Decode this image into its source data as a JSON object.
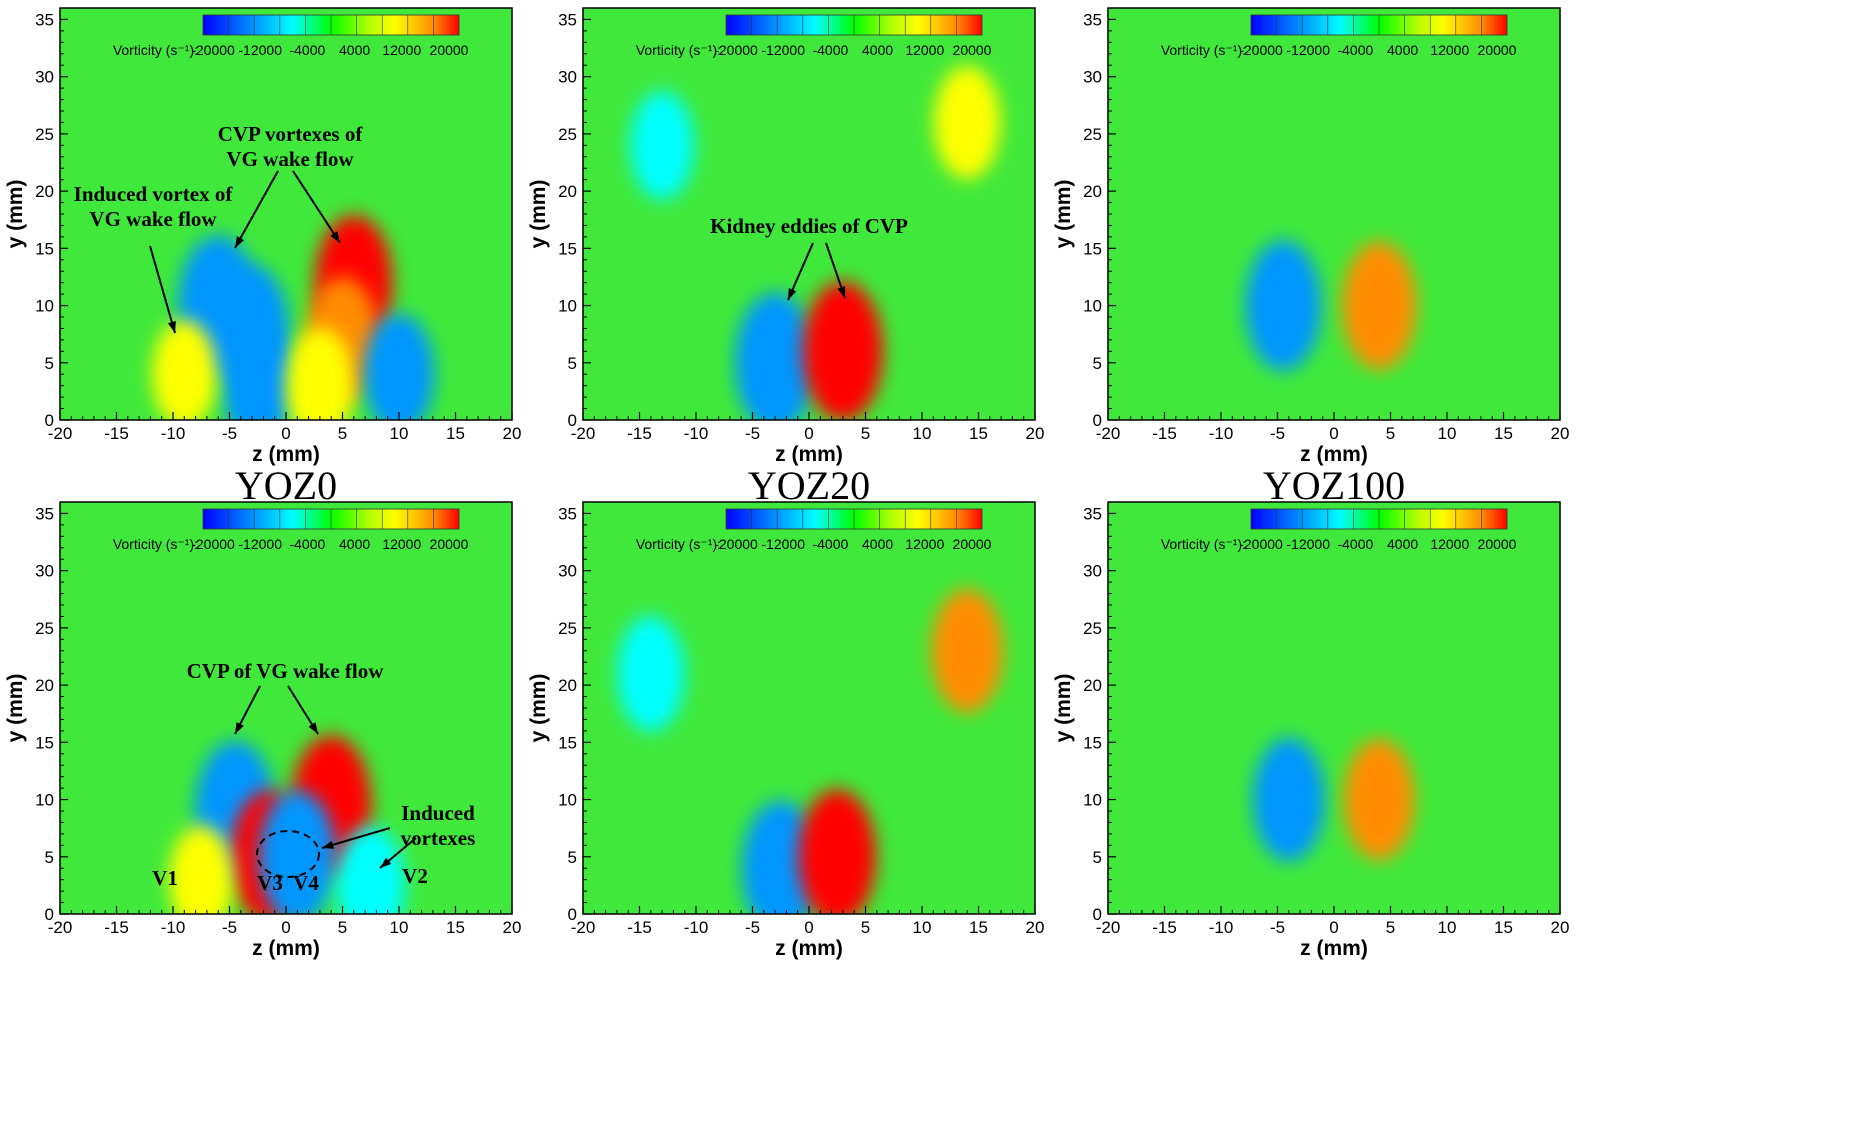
{
  "chart_data": [
    {
      "type": "heatmap",
      "panel": "top-left",
      "xlabel": "z (mm)",
      "ylabel": "y (mm)",
      "xlim": [
        -20,
        20
      ],
      "ylim": [
        0,
        36
      ],
      "xticks": [
        -20,
        -15,
        -10,
        -5,
        0,
        5,
        10,
        15,
        20
      ],
      "yticks": [
        0,
        5,
        10,
        15,
        20,
        25,
        30,
        35
      ],
      "colorbar": {
        "label": "Vorticity (s⁻¹):",
        "ticks": [
          "-20000",
          "-12000",
          "-4000",
          "4000",
          "12000",
          "20000"
        ],
        "range": [
          -20000,
          20000
        ]
      },
      "plane_label": "YOZ0",
      "features": [
        {
          "z": -6,
          "y": 10,
          "vorticity": -20000
        },
        {
          "z": -3,
          "y": 8,
          "vorticity": -14000
        },
        {
          "z": -2.5,
          "y": 3,
          "vorticity": -12000
        },
        {
          "z": -9,
          "y": 4,
          "vorticity": 7000
        },
        {
          "z": 6,
          "y": 12,
          "vorticity": 18000
        },
        {
          "z": 5,
          "y": 7,
          "vorticity": 14000
        },
        {
          "z": 3,
          "y": 3,
          "vorticity": 10000
        },
        {
          "z": 10,
          "y": 4,
          "vorticity": -12000
        }
      ],
      "annotations": [
        {
          "lines": [
            "CVP vortexes of",
            "VG wake flow"
          ]
        },
        {
          "lines": [
            "Induced vortex of",
            "VG wake flow"
          ]
        }
      ]
    },
    {
      "type": "heatmap",
      "panel": "top-middle",
      "xlabel": "z (mm)",
      "ylabel": "y (mm)",
      "xlim": [
        -20,
        20
      ],
      "ylim": [
        0,
        36
      ],
      "xticks": [
        -20,
        -15,
        -10,
        -5,
        0,
        5,
        10,
        15,
        20
      ],
      "yticks": [
        0,
        5,
        10,
        15,
        20,
        25,
        30,
        35
      ],
      "colorbar": {
        "label": "Vorticity (s⁻¹):",
        "ticks": [
          "-20000",
          "-12000",
          "-4000",
          "4000",
          "12000",
          "20000"
        ],
        "range": [
          -20000,
          20000
        ]
      },
      "plane_label": "YOZ20",
      "features": [
        {
          "z": -3,
          "y": 5,
          "vorticity": -20000
        },
        {
          "z": 3,
          "y": 6,
          "vorticity": 20000
        },
        {
          "z": -13,
          "y": 24,
          "vorticity": -7000
        },
        {
          "z": 14,
          "y": 26,
          "vorticity": 9000
        }
      ],
      "annotations": [
        {
          "lines": [
            "Kidney eddies of CVP"
          ]
        }
      ]
    },
    {
      "type": "heatmap",
      "panel": "top-right",
      "xlabel": "z (mm)",
      "ylabel": "y (mm)",
      "xlim": [
        -20,
        20
      ],
      "ylim": [
        0,
        36
      ],
      "xticks": [
        -20,
        -15,
        -10,
        -5,
        0,
        5,
        10,
        15,
        20
      ],
      "yticks": [
        0,
        5,
        10,
        15,
        20,
        25,
        30,
        35
      ],
      "colorbar": {
        "label": "Vorticity (s⁻¹):",
        "ticks": [
          "-20000",
          "-12000",
          "-4000",
          "4000",
          "12000",
          "20000"
        ],
        "range": [
          -20000,
          20000
        ]
      },
      "plane_label": "YOZ100",
      "features": [
        {
          "z": -4.5,
          "y": 10,
          "vorticity": -16000
        },
        {
          "z": 4,
          "y": 10,
          "vorticity": 15000
        }
      ],
      "annotations": []
    },
    {
      "type": "heatmap",
      "panel": "bottom-left",
      "xlabel": "z (mm)",
      "ylabel": "y (mm)",
      "xlim": [
        -20,
        20
      ],
      "ylim": [
        0,
        36
      ],
      "xticks": [
        -20,
        -15,
        -10,
        -5,
        0,
        5,
        10,
        15,
        20
      ],
      "yticks": [
        0,
        5,
        10,
        15,
        20,
        25,
        30,
        35
      ],
      "colorbar": {
        "label": "Vorticity (s⁻¹):",
        "ticks": [
          "-20000",
          "-12000",
          "-4000",
          "4000",
          "12000",
          "20000"
        ],
        "range": [
          -20000,
          20000
        ]
      },
      "plane_label": "",
      "features": [
        {
          "z": -4.5,
          "y": 9,
          "vorticity": -20000
        },
        {
          "z": 4,
          "y": 9.5,
          "vorticity": 20000
        },
        {
          "z": -1.5,
          "y": 5,
          "vorticity": 17000
        },
        {
          "z": 1,
          "y": 5,
          "vorticity": -17000
        },
        {
          "z": -7.5,
          "y": 3,
          "vorticity": 7000
        },
        {
          "z": 7.5,
          "y": 2.5,
          "vorticity": -11000
        }
      ],
      "annotations": [
        {
          "lines": [
            "CVP of VG wake flow"
          ]
        },
        {
          "lines": [
            "Induced",
            "vortexes"
          ]
        },
        {
          "lines": [
            "V1"
          ]
        },
        {
          "lines": [
            "V2"
          ]
        },
        {
          "lines": [
            "V3"
          ]
        },
        {
          "lines": [
            "V4"
          ]
        }
      ]
    },
    {
      "type": "heatmap",
      "panel": "bottom-middle",
      "xlabel": "z (mm)",
      "ylabel": "y (mm)",
      "xlim": [
        -20,
        20
      ],
      "ylim": [
        0,
        36
      ],
      "xticks": [
        -20,
        -15,
        -10,
        -5,
        0,
        5,
        10,
        15,
        20
      ],
      "yticks": [
        0,
        5,
        10,
        15,
        20,
        25,
        30,
        35
      ],
      "colorbar": {
        "label": "Vorticity (s⁻¹):",
        "ticks": [
          "-20000",
          "-12000",
          "-4000",
          "4000",
          "12000",
          "20000"
        ],
        "range": [
          -20000,
          20000
        ]
      },
      "plane_label": "",
      "features": [
        {
          "z": -2.5,
          "y": 4,
          "vorticity": -18000
        },
        {
          "z": 2.5,
          "y": 5,
          "vorticity": 18000
        },
        {
          "z": -14,
          "y": 21,
          "vorticity": -10000
        },
        {
          "z": 14,
          "y": 23,
          "vorticity": 13000
        }
      ],
      "annotations": []
    },
    {
      "type": "heatmap",
      "panel": "bottom-right",
      "xlabel": "z (mm)",
      "ylabel": "y (mm)",
      "xlim": [
        -20,
        20
      ],
      "ylim": [
        0,
        36
      ],
      "xticks": [
        -20,
        -15,
        -10,
        -5,
        0,
        5,
        10,
        15,
        20
      ],
      "yticks": [
        0,
        5,
        10,
        15,
        20,
        25,
        30,
        35
      ],
      "colorbar": {
        "label": "Vorticity (s⁻¹):",
        "ticks": [
          "-20000",
          "-12000",
          "-4000",
          "4000",
          "12000",
          "20000"
        ],
        "range": [
          -20000,
          20000
        ]
      },
      "plane_label": "",
      "features": [
        {
          "z": -4,
          "y": 10,
          "vorticity": -13000
        },
        {
          "z": 4,
          "y": 10,
          "vorticity": 12000
        }
      ],
      "annotations": []
    }
  ]
}
